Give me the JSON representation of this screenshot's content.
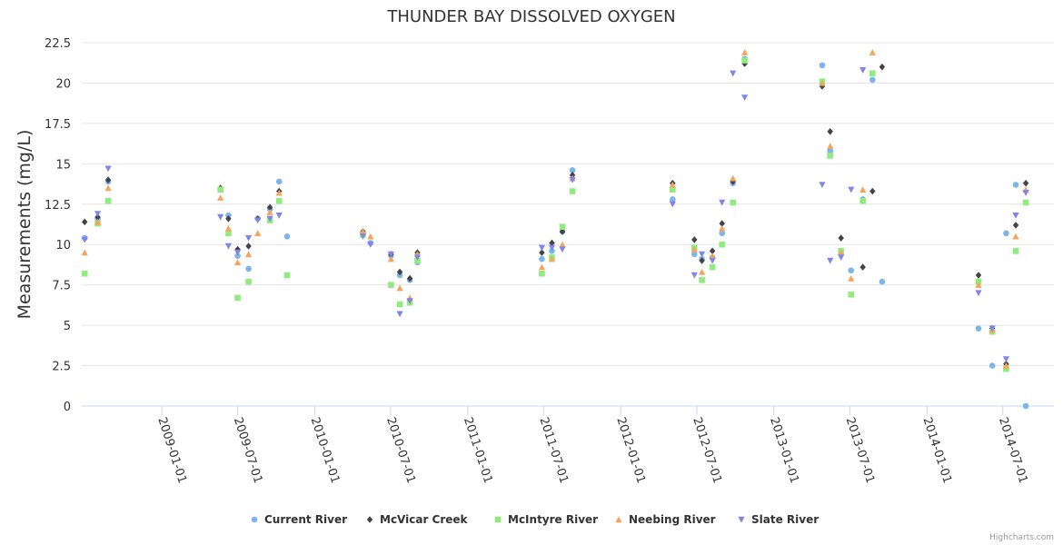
{
  "chart_data": {
    "type": "scatter",
    "title": "THUNDER BAY DISSOLVED OXYGEN",
    "xlabel": "",
    "ylabel": "Measurements (mg/L)",
    "ylim": [
      0,
      22.5
    ],
    "yticks": [
      0,
      2.5,
      5,
      7.5,
      10,
      12.5,
      15,
      17.5,
      20,
      22.5
    ],
    "ytick_labels": [
      "0",
      "2.5",
      "5",
      "7.5",
      "10",
      "12.5",
      "15",
      "17.5",
      "20",
      "22.5"
    ],
    "xlim": [
      "2008-06-24",
      "2014-10-31"
    ],
    "xticks": [
      "2009-01-01",
      "2009-07-01",
      "2010-01-01",
      "2010-07-01",
      "2011-01-01",
      "2011-07-01",
      "2012-01-01",
      "2012-07-01",
      "2013-01-01",
      "2013-07-01",
      "2014-01-01",
      "2014-07-01"
    ],
    "grid": "horizontal",
    "legend": "bottom-center",
    "series": [
      {
        "name": "Current River",
        "color": "#7cb5ec",
        "marker": "circle",
        "x": [
          "2008-07-01",
          "2008-08-01",
          "2008-08-26",
          "2009-05-21",
          "2009-06-09",
          "2009-07-01",
          "2009-07-27",
          "2009-08-18",
          "2009-09-16",
          "2009-10-08",
          "2009-10-27",
          "2010-04-26",
          "2010-05-14",
          "2010-07-02",
          "2010-07-23",
          "2010-08-16",
          "2010-09-03",
          "2011-06-27",
          "2011-07-21",
          "2011-08-15",
          "2011-09-08",
          "2012-05-04",
          "2012-06-25",
          "2012-07-13",
          "2012-08-07",
          "2012-08-30",
          "2012-09-25",
          "2012-10-23",
          "2013-04-26",
          "2013-05-15",
          "2013-06-10",
          "2013-07-04",
          "2013-08-01",
          "2013-08-24",
          "2013-09-16",
          "2014-05-04",
          "2014-06-06",
          "2014-07-09",
          "2014-08-01",
          "2014-08-25"
        ],
        "y": [
          10.4,
          11.6,
          13.9,
          13.4,
          11.8,
          9.3,
          8.5,
          11.6,
          12.2,
          13.9,
          10.5,
          10.7,
          10.1,
          9.3,
          8.1,
          7.8,
          8.9,
          9.1,
          9.6,
          10.8,
          14.6,
          12.8,
          9.4,
          9.1,
          9.2,
          10.7,
          13.8,
          21.5,
          21.1,
          15.8,
          9.4,
          8.4,
          12.8,
          20.2,
          7.7,
          4.8,
          2.5,
          10.7,
          13.7,
          0
        ]
      },
      {
        "name": "McVicar Creek",
        "color": "#434348",
        "marker": "diamond",
        "x": [
          "2008-07-01",
          "2008-08-01",
          "2008-08-26",
          "2009-05-21",
          "2009-06-09",
          "2009-07-01",
          "2009-07-27",
          "2009-08-18",
          "2009-09-16",
          "2009-10-08",
          "2010-04-26",
          "2010-07-02",
          "2010-07-23",
          "2010-08-16",
          "2010-09-03",
          "2011-06-27",
          "2011-07-21",
          "2011-08-15",
          "2011-09-08",
          "2012-05-04",
          "2012-06-25",
          "2012-07-13",
          "2012-08-07",
          "2012-08-30",
          "2012-09-25",
          "2012-10-23",
          "2013-04-26",
          "2013-05-15",
          "2013-06-10",
          "2013-08-01",
          "2013-08-24",
          "2013-09-16",
          "2014-05-04",
          "2014-06-06",
          "2014-07-09",
          "2014-08-01",
          "2014-08-25"
        ],
        "y": [
          11.4,
          11.7,
          14.0,
          13.5,
          11.6,
          9.7,
          9.9,
          11.6,
          12.3,
          13.3,
          10.8,
          9.4,
          8.3,
          7.9,
          9.5,
          9.5,
          10.1,
          10.8,
          14.3,
          13.8,
          10.3,
          9.0,
          9.6,
          11.3,
          13.9,
          21.2,
          19.8,
          17.0,
          10.4,
          8.6,
          13.3,
          21.0,
          8.1,
          4.8,
          2.6,
          11.2,
          13.8
        ]
      },
      {
        "name": "McIntyre River",
        "color": "#90ed7d",
        "marker": "square",
        "x": [
          "2008-07-01",
          "2008-08-01",
          "2008-08-26",
          "2009-05-21",
          "2009-06-09",
          "2009-07-01",
          "2009-07-27",
          "2009-09-16",
          "2009-10-08",
          "2009-10-27",
          "2010-04-26",
          "2010-07-02",
          "2010-07-23",
          "2010-08-16",
          "2010-09-03",
          "2011-06-27",
          "2011-07-21",
          "2011-08-15",
          "2011-09-08",
          "2012-05-04",
          "2012-06-25",
          "2012-07-13",
          "2012-08-07",
          "2012-08-30",
          "2012-09-25",
          "2012-10-23",
          "2013-04-26",
          "2013-05-15",
          "2013-06-10",
          "2013-07-04",
          "2013-08-01",
          "2013-08-24",
          "2014-05-04",
          "2014-06-06",
          "2014-07-09",
          "2014-08-01",
          "2014-08-25"
        ],
        "y": [
          8.2,
          11.3,
          12.7,
          13.4,
          10.7,
          6.7,
          7.7,
          11.5,
          12.7,
          8.1,
          10.6,
          7.5,
          6.3,
          6.4,
          9.0,
          8.2,
          9.2,
          11.1,
          13.3,
          13.4,
          9.8,
          7.8,
          8.6,
          10.0,
          12.6,
          21.4,
          20.1,
          15.5,
          9.6,
          6.9,
          12.7,
          20.6,
          7.7,
          4.6,
          2.3,
          9.6,
          12.6
        ]
      },
      {
        "name": "Neebing River",
        "color": "#f7a35c",
        "marker": "triangle",
        "x": [
          "2008-07-01",
          "2008-08-01",
          "2008-08-26",
          "2009-05-21",
          "2009-06-09",
          "2009-07-01",
          "2009-07-27",
          "2009-08-18",
          "2009-09-16",
          "2009-10-08",
          "2010-04-26",
          "2010-05-14",
          "2010-07-02",
          "2010-07-23",
          "2010-08-16",
          "2010-09-03",
          "2011-06-27",
          "2011-07-21",
          "2011-08-15",
          "2011-09-08",
          "2012-05-04",
          "2012-06-25",
          "2012-07-13",
          "2012-08-07",
          "2012-08-30",
          "2012-09-25",
          "2012-10-23",
          "2013-04-26",
          "2013-05-15",
          "2013-06-10",
          "2013-07-04",
          "2013-08-01",
          "2013-08-24",
          "2014-05-04",
          "2014-06-06",
          "2014-07-09",
          "2014-08-01",
          "2014-08-25"
        ],
        "y": [
          9.5,
          11.4,
          13.5,
          12.9,
          11.0,
          8.9,
          9.4,
          10.7,
          12.0,
          13.2,
          10.8,
          10.5,
          9.1,
          7.3,
          6.7,
          9.4,
          8.6,
          9.1,
          10.0,
          14.1,
          13.7,
          9.7,
          8.3,
          9.3,
          11.0,
          14.1,
          21.9,
          20.0,
          16.1,
          9.5,
          7.9,
          13.4,
          21.9,
          7.5,
          4.7,
          2.5,
          10.5,
          13.4
        ]
      },
      {
        "name": "Slate River",
        "color": "#8085e9",
        "marker": "triangle-down",
        "x": [
          "2008-07-01",
          "2008-08-01",
          "2008-08-26",
          "2009-05-21",
          "2009-06-09",
          "2009-07-01",
          "2009-07-27",
          "2009-08-18",
          "2009-09-16",
          "2009-10-08",
          "2010-04-26",
          "2010-05-14",
          "2010-07-02",
          "2010-07-23",
          "2010-08-16",
          "2010-09-03",
          "2011-06-27",
          "2011-07-21",
          "2011-08-15",
          "2011-09-08",
          "2012-05-04",
          "2012-06-25",
          "2012-07-13",
          "2012-08-07",
          "2012-08-30",
          "2012-09-25",
          "2012-10-23",
          "2013-04-26",
          "2013-05-15",
          "2013-06-10",
          "2013-07-04",
          "2013-08-01",
          "2014-05-04",
          "2014-06-06",
          "2014-07-09",
          "2014-08-01",
          "2014-08-25"
        ],
        "y": [
          10.3,
          11.9,
          14.7,
          11.7,
          9.9,
          9.5,
          10.4,
          11.5,
          11.6,
          11.8,
          10.5,
          10.0,
          9.4,
          5.7,
          6.5,
          9.2,
          9.8,
          9.8,
          9.7,
          14.0,
          12.5,
          8.1,
          9.4,
          9.0,
          12.6,
          20.6,
          19.1,
          13.7,
          9.0,
          9.2,
          13.4,
          20.8,
          7.0,
          4.8,
          2.9,
          11.8,
          13.2
        ]
      }
    ]
  },
  "legend": {
    "items": [
      "Current River",
      "McVicar Creek",
      "McIntyre River",
      "Neebing River",
      "Slate River"
    ]
  },
  "credits": "Highcharts.com"
}
